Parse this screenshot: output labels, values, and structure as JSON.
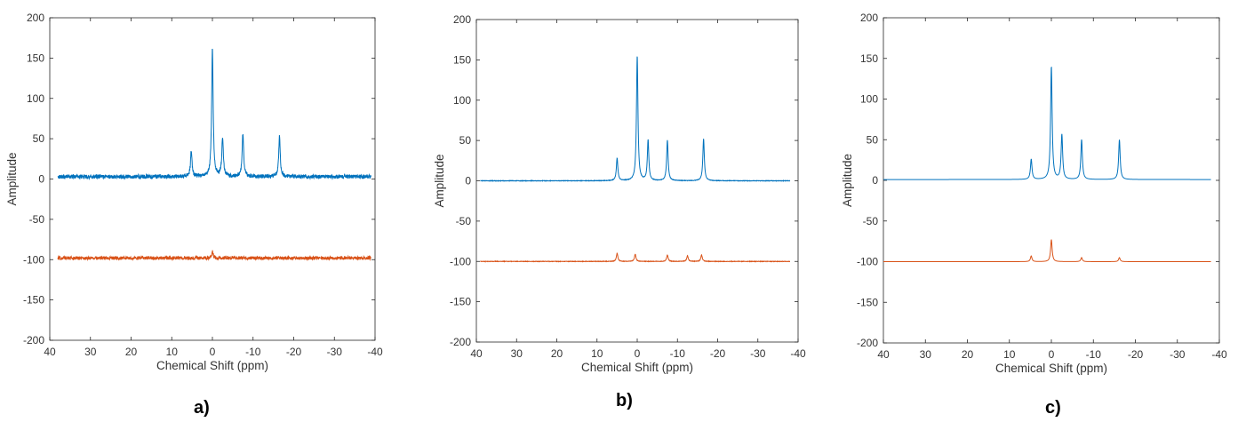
{
  "chart_data": [
    {
      "type": "line",
      "panel_label": "a)",
      "xlabel": "Chemical Shift (ppm)",
      "ylabel": "Amplitude",
      "xlim": [
        40,
        -40
      ],
      "ylim": [
        -200,
        200
      ],
      "xticks": [
        40,
        30,
        20,
        10,
        0,
        -10,
        -20,
        -30,
        -40
      ],
      "yticks": [
        200,
        150,
        100,
        50,
        0,
        -50,
        -100,
        -150,
        -200
      ],
      "x_range": [
        38,
        -39
      ],
      "series": [
        {
          "color": "#0072bd",
          "baseline": 3,
          "noise": 2.5,
          "peaks": [
            {
              "x": 5.2,
              "y": 35
            },
            {
              "x": 0,
              "y": 162
            },
            {
              "x": -2.5,
              "y": 52
            },
            {
              "x": -7.5,
              "y": 57
            },
            {
              "x": -16.5,
              "y": 53
            }
          ]
        },
        {
          "color": "#d95319",
          "baseline": -98,
          "noise": 2.2,
          "peaks": [
            {
              "x": 0,
              "y": -90
            }
          ]
        }
      ]
    },
    {
      "type": "line",
      "panel_label": "b)",
      "xlabel": "Chemical Shift (ppm)",
      "ylabel": "Amplitude",
      "xlim": [
        40,
        -40
      ],
      "ylim": [
        -200,
        200
      ],
      "xticks": [
        40,
        30,
        20,
        10,
        0,
        -10,
        -20,
        -30,
        -40
      ],
      "yticks": [
        200,
        150,
        100,
        50,
        0,
        -50,
        -100,
        -150,
        -200
      ],
      "x_range": [
        39,
        -38
      ],
      "series": [
        {
          "color": "#0072bd",
          "baseline": 0,
          "noise": 0.3,
          "peaks": [
            {
              "x": 5.0,
              "y": 28
            },
            {
              "x": 0,
              "y": 155
            },
            {
              "x": -2.7,
              "y": 50
            },
            {
              "x": -7.5,
              "y": 50
            },
            {
              "x": -16.5,
              "y": 52
            }
          ]
        },
        {
          "color": "#d95319",
          "baseline": -100,
          "noise": 0.3,
          "peaks": [
            {
              "x": 5.0,
              "y": -90
            },
            {
              "x": 0.5,
              "y": -91
            },
            {
              "x": -7.5,
              "y": -92
            },
            {
              "x": -12.5,
              "y": -93
            },
            {
              "x": -16,
              "y": -92
            }
          ]
        }
      ]
    },
    {
      "type": "line",
      "panel_label": "c)",
      "xlabel": "Chemical Shift (ppm)",
      "ylabel": "Amplitude",
      "xlim": [
        40,
        -40
      ],
      "ylim": [
        -200,
        200
      ],
      "xticks": [
        40,
        30,
        20,
        10,
        0,
        -10,
        -20,
        -30,
        -40
      ],
      "yticks": [
        200,
        150,
        100,
        50,
        0,
        -50,
        -100,
        -150,
        -200
      ],
      "x_range": [
        40,
        -38
      ],
      "series": [
        {
          "color": "#0072bd",
          "baseline": 1,
          "noise": 0,
          "peaks": [
            {
              "x": 4.8,
              "y": 26
            },
            {
              "x": 0,
              "y": 140
            },
            {
              "x": -2.5,
              "y": 56
            },
            {
              "x": -7.2,
              "y": 50
            },
            {
              "x": -16.2,
              "y": 50
            }
          ]
        },
        {
          "color": "#d95319",
          "baseline": -100,
          "noise": 0,
          "peaks": [
            {
              "x": 4.8,
              "y": -93
            },
            {
              "x": 0,
              "y": -73
            },
            {
              "x": -7.2,
              "y": -95
            },
            {
              "x": -16.2,
              "y": -95
            }
          ]
        }
      ]
    }
  ]
}
